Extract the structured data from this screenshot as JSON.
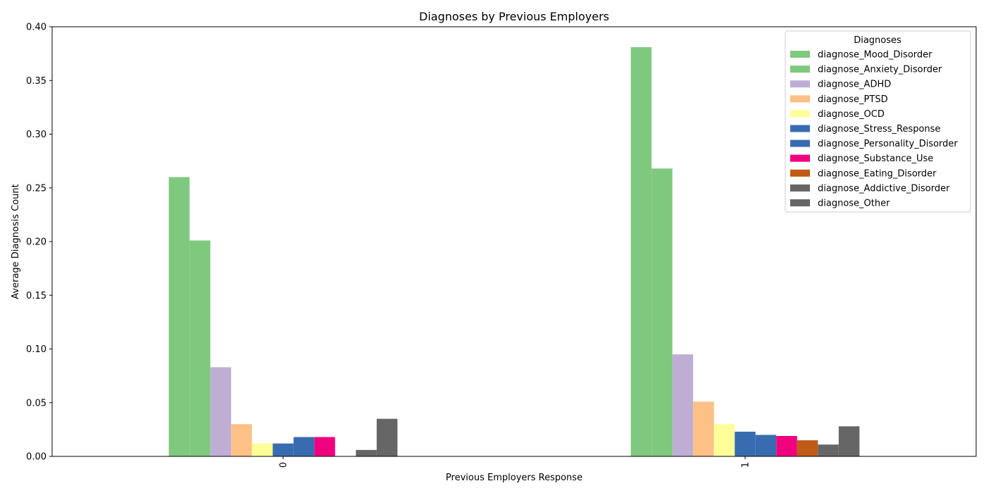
{
  "chart_data": {
    "type": "bar",
    "title": "Diagnoses by Previous Employers",
    "xlabel": "Previous Employers Response",
    "ylabel": "Average Diagnosis Count",
    "categories": [
      "0",
      "1"
    ],
    "ylim": [
      0,
      0.4
    ],
    "yticks": [
      "0.00",
      "0.05",
      "0.10",
      "0.15",
      "0.20",
      "0.25",
      "0.30",
      "0.35",
      "0.40"
    ],
    "grid": false,
    "legend": {
      "title": "Diagnoses",
      "placement": "top-right"
    },
    "series": [
      {
        "name": "diagnose_Mood_Disorder",
        "color": "#7fc97f",
        "values": [
          0.26,
          0.381
        ]
      },
      {
        "name": "diagnose_Anxiety_Disorder",
        "color": "#7fc97f",
        "values": [
          0.201,
          0.268
        ]
      },
      {
        "name": "diagnose_ADHD",
        "color": "#beaed4",
        "values": [
          0.083,
          0.095
        ]
      },
      {
        "name": "diagnose_PTSD",
        "color": "#fdc086",
        "values": [
          0.03,
          0.051
        ]
      },
      {
        "name": "diagnose_OCD",
        "color": "#ffff99",
        "values": [
          0.012,
          0.03
        ]
      },
      {
        "name": "diagnose_Stress_Response",
        "color": "#386cb0",
        "values": [
          0.012,
          0.023
        ]
      },
      {
        "name": "diagnose_Personality_Disorder",
        "color": "#386cb0",
        "values": [
          0.018,
          0.02
        ]
      },
      {
        "name": "diagnose_Substance_Use",
        "color": "#f0027f",
        "values": [
          0.018,
          0.019
        ]
      },
      {
        "name": "diagnose_Eating_Disorder",
        "color": "#bf5b17",
        "values": [
          0.0,
          0.015
        ]
      },
      {
        "name": "diagnose_Addictive_Disorder",
        "color": "#666666",
        "values": [
          0.006,
          0.011
        ]
      },
      {
        "name": "diagnose_Other",
        "color": "#666666",
        "values": [
          0.035,
          0.028
        ]
      }
    ]
  }
}
